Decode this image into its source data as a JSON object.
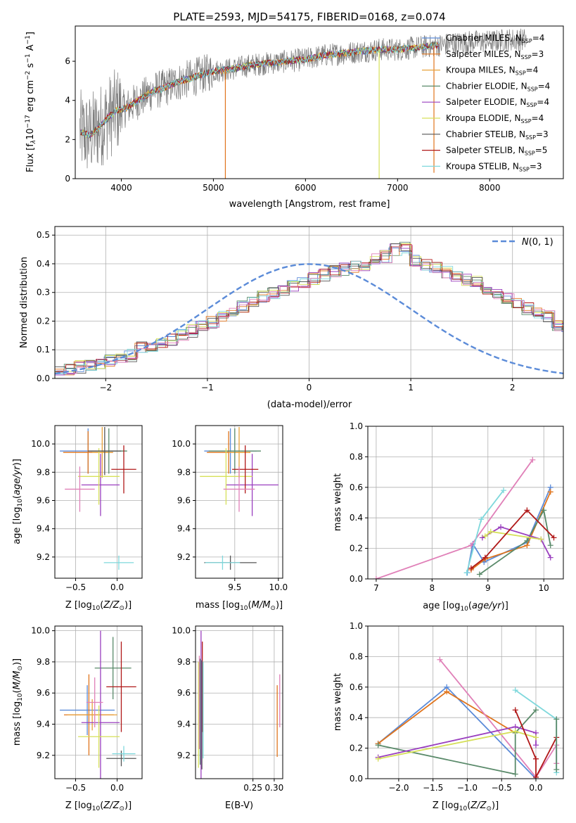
{
  "figure_title": "PLATE=2593, MJD=54175, FIBERID=0168, z=0.074",
  "colors": {
    "Chabrier MILES": "#5b8bd8",
    "Salpeter MILES": "#e0741c",
    "Kroupa MILES": "#e8a23a",
    "Chabrier ELODIE": "#5a8a6a",
    "Salpeter ELODIE": "#9a3fbf",
    "Kroupa ELODIE": "#d6e05a",
    "Chabrier STELIB": "#555555",
    "Salpeter STELIB": "#b01818",
    "Kroupa STELIB": "#7fd8dc",
    "pink": "#e080b8",
    "data": "#7a7a7a",
    "normal": "#5b8bd8"
  },
  "chart_data": [
    {
      "id": "spectrum",
      "type": "line",
      "xlabel": "wavelength [Angstrom, rest frame]",
      "ylabel": "Flux [f",
      "xlim": [
        3500,
        8800
      ],
      "ylim": [
        0,
        7.8
      ],
      "xticks": [
        4000,
        5000,
        6000,
        7000,
        8000
      ],
      "yticks": [
        0,
        2,
        4,
        6
      ],
      "legend_position": "upper right",
      "legend": [
        {
          "model": "Chabrier MILES",
          "label": "Chabrier MILES, N",
          "n": "=4"
        },
        {
          "model": "Salpeter MILES",
          "label": "Salpeter MILES, N",
          "n": "=3"
        },
        {
          "model": "Kroupa MILES",
          "label": "Kroupa MILES, N",
          "n": "=4"
        },
        {
          "model": "Chabrier ELODIE",
          "label": "Chabrier ELODIE, N",
          "n": "=4"
        },
        {
          "model": "Salpeter ELODIE",
          "label": "Salpeter ELODIE, N",
          "n": "=4"
        },
        {
          "model": "Kroupa ELODIE",
          "label": "Kroupa ELODIE, N",
          "n": "=4"
        },
        {
          "model": "Chabrier STELIB",
          "label": "Chabrier STELIB, N",
          "n": "=3"
        },
        {
          "model": "Salpeter STELIB",
          "label": "Salpeter STELIB, N",
          "n": "=5"
        },
        {
          "model": "Kroupa STELIB",
          "label": "Kroupa STELIB, N",
          "n": "=3"
        }
      ],
      "continuum": {
        "x": [
          3550,
          3650,
          3750,
          3850,
          3950,
          4050,
          4150,
          4250,
          4350,
          4450,
          4600,
          4800,
          5000,
          5200,
          5400,
          5600,
          5800,
          6000,
          6200,
          6400,
          6600,
          6800,
          7000,
          7200,
          7400,
          7600,
          7800,
          8000,
          8200,
          8400
        ],
        "y": [
          2.4,
          2.2,
          2.6,
          3.1,
          3.5,
          3.6,
          3.9,
          4.2,
          4.5,
          4.6,
          4.9,
          5.2,
          5.5,
          5.6,
          5.8,
          5.9,
          6.0,
          6.1,
          6.3,
          6.4,
          6.5,
          6.6,
          6.6,
          6.7,
          6.8,
          6.9,
          7.0,
          7.0,
          7.1,
          7.1
        ]
      },
      "dips": [
        {
          "x": 5130,
          "depth": 0,
          "model": "Salpeter MILES"
        },
        {
          "x": 6800,
          "depth": 0,
          "model": "Kroupa ELODIE"
        },
        {
          "x": 7395,
          "depth": 0.3,
          "model": "Salpeter MILES"
        }
      ]
    },
    {
      "id": "residual-histogram",
      "type": "histogram",
      "xlabel": "(data-model)/error",
      "ylabel": "Normed distribution",
      "xlim": [
        -2.5,
        2.5
      ],
      "ylim": [
        0,
        0.53
      ],
      "xticks": [
        -2,
        -1,
        0,
        1,
        2
      ],
      "yticks": [
        0.0,
        0.1,
        0.2,
        0.3,
        0.4,
        0.5
      ],
      "bin_width": 0.1,
      "bin_start": -2.5,
      "base_values": [
        0.03,
        0.033,
        0.04,
        0.048,
        0.056,
        0.062,
        0.068,
        0.08,
        0.108,
        0.112,
        0.122,
        0.134,
        0.15,
        0.166,
        0.18,
        0.196,
        0.22,
        0.234,
        0.248,
        0.262,
        0.284,
        0.298,
        0.31,
        0.324,
        0.338,
        0.35,
        0.362,
        0.372,
        0.38,
        0.388,
        0.392,
        0.418,
        0.425,
        0.448,
        0.46,
        0.412,
        0.396,
        0.388,
        0.372,
        0.36,
        0.346,
        0.334,
        0.31,
        0.296,
        0.276,
        0.262,
        0.244,
        0.232,
        0.216,
        0.184,
        0.176,
        0.16,
        0.14,
        0.128,
        0.108,
        0.104,
        0.09,
        0.08,
        0.07,
        0.062,
        0.052,
        0.046,
        0.04,
        0.034,
        0.028
      ],
      "normal": {
        "label": "N(0,1)",
        "mu": 0,
        "sigma": 1
      }
    },
    {
      "id": "age-vs-Z",
      "type": "errorbar",
      "xlabel": "Z [log",
      "ylabel": "age  [log",
      "xlim": [
        -0.75,
        0.3
      ],
      "ylim": [
        9.05,
        10.13
      ],
      "xticks": [
        -0.5,
        0.0
      ],
      "yticks": [
        9.2,
        9.4,
        9.6,
        9.8,
        10.0
      ],
      "points": [
        {
          "model": "Chabrier MILES",
          "x": -0.35,
          "y": 9.95,
          "xerr": 0.34,
          "yerr": 0.16
        },
        {
          "model": "Salpeter MILES",
          "x": -0.35,
          "y": 9.94,
          "xerr": 0.3,
          "yerr": 0.15
        },
        {
          "model": "Kroupa MILES",
          "x": -0.18,
          "y": 9.94,
          "xerr": 0.12,
          "yerr": 0.18
        },
        {
          "model": "Chabrier ELODIE",
          "x": -0.1,
          "y": 9.95,
          "xerr": 0.22,
          "yerr": 0.16
        },
        {
          "model": "Salpeter ELODIE",
          "x": -0.2,
          "y": 9.71,
          "xerr": 0.23,
          "yerr": 0.22
        },
        {
          "model": "Kroupa ELODIE",
          "x": -0.22,
          "y": 9.77,
          "xerr": 0.25,
          "yerr": 0.2
        },
        {
          "model": "Chabrier STELIB",
          "x": -0.15,
          "y": 9.95,
          "xerr": 0.2,
          "yerr": 0.17
        },
        {
          "model": "Salpeter STELIB",
          "x": 0.08,
          "y": 9.82,
          "xerr": 0.15,
          "yerr": 0.17
        },
        {
          "model": "Kroupa STELIB",
          "x": 0.02,
          "y": 9.16,
          "xerr": 0.18,
          "yerr": 0.05
        },
        {
          "model": "pink",
          "x": -0.45,
          "y": 9.68,
          "xerr": 0.18,
          "yerr": 0.16
        }
      ]
    },
    {
      "id": "age-vs-mass",
      "type": "errorbar",
      "xlabel": "mass [log",
      "ylabel": "",
      "xlim": [
        9.05,
        10.05
      ],
      "ylim": [
        9.05,
        10.13
      ],
      "xticks": [
        9.5,
        10.0
      ],
      "yticks": [
        9.2,
        9.4,
        9.6,
        9.8,
        10.0
      ],
      "points": [
        {
          "model": "Chabrier MILES",
          "x": 9.45,
          "y": 9.95,
          "xerr": 0.3,
          "yerr": 0.16
        },
        {
          "model": "Salpeter MILES",
          "x": 9.43,
          "y": 9.94,
          "xerr": 0.25,
          "yerr": 0.15
        },
        {
          "model": "Kroupa MILES",
          "x": 9.55,
          "y": 9.94,
          "xerr": 0.12,
          "yerr": 0.18
        },
        {
          "model": "Chabrier ELODIE",
          "x": 9.5,
          "y": 9.95,
          "xerr": 0.3,
          "yerr": 0.16
        },
        {
          "model": "Salpeter ELODIE",
          "x": 9.7,
          "y": 9.71,
          "xerr": 0.3,
          "yerr": 0.22
        },
        {
          "model": "Kroupa ELODIE",
          "x": 9.4,
          "y": 9.77,
          "xerr": 0.3,
          "yerr": 0.2
        },
        {
          "model": "Chabrier STELIB",
          "x": 9.45,
          "y": 9.16,
          "xerr": 0.3,
          "yerr": 0.05
        },
        {
          "model": "Salpeter STELIB",
          "x": 9.62,
          "y": 9.82,
          "xerr": 0.15,
          "yerr": 0.17
        },
        {
          "model": "Kroupa STELIB",
          "x": 9.36,
          "y": 9.16,
          "xerr": 0.2,
          "yerr": 0.05
        },
        {
          "model": "pink",
          "x": 9.55,
          "y": 9.68,
          "xerr": 0.18,
          "yerr": 0.16
        }
      ]
    },
    {
      "id": "massweight-vs-age",
      "type": "line",
      "xlabel": "age  [log",
      "ylabel": "mass weight",
      "xlim": [
        6.85,
        10.35
      ],
      "ylim": [
        0,
        1.0
      ],
      "xticks": [
        7,
        8,
        9,
        10
      ],
      "yticks": [
        0.0,
        0.2,
        0.4,
        0.6,
        0.8,
        1.0
      ],
      "series": [
        {
          "model": "Chabrier MILES",
          "x": [
            8.63,
            8.73,
            8.93,
            9.7,
            10.12
          ],
          "y": [
            0.04,
            0.23,
            0.11,
            0.24,
            0.6
          ]
        },
        {
          "model": "Salpeter MILES",
          "x": [
            8.7,
            8.95,
            9.7,
            10.12
          ],
          "y": [
            0.06,
            0.13,
            0.22,
            0.57
          ]
        },
        {
          "model": "pink",
          "x": [
            7.0,
            8.7,
            9.8
          ],
          "y": [
            0.0,
            0.22,
            0.78
          ]
        },
        {
          "model": "Chabrier ELODIE",
          "x": [
            8.85,
            9.7,
            10.0,
            10.12
          ],
          "y": [
            0.03,
            0.25,
            0.45,
            0.22
          ]
        },
        {
          "model": "Salpeter ELODIE",
          "x": [
            8.9,
            9.23,
            9.95,
            10.12
          ],
          "y": [
            0.27,
            0.34,
            0.26,
            0.14
          ]
        },
        {
          "model": "Kroupa ELODIE",
          "x": [
            8.95,
            9.05,
            9.95
          ],
          "y": [
            0.28,
            0.31,
            0.26
          ]
        },
        {
          "model": "Salpeter STELIB",
          "x": [
            8.7,
            8.95,
            9.7,
            10.18
          ],
          "y": [
            0.07,
            0.14,
            0.45,
            0.27
          ]
        },
        {
          "model": "Kroupa STELIB",
          "x": [
            8.62,
            8.88,
            9.28
          ],
          "y": [
            0.04,
            0.39,
            0.58
          ]
        }
      ]
    },
    {
      "id": "mass-vs-Z",
      "type": "errorbar",
      "xlabel": "Z [log",
      "ylabel": "mass [log",
      "xlim": [
        -0.75,
        0.3
      ],
      "ylim": [
        9.05,
        10.03
      ],
      "xticks": [
        -0.5,
        0.0
      ],
      "yticks": [
        9.2,
        9.4,
        9.6,
        9.8,
        10.0
      ],
      "points": [
        {
          "model": "Chabrier MILES",
          "x": -0.36,
          "y": 9.49,
          "xerr": 0.33,
          "yerr": 0.16
        },
        {
          "model": "Salpeter MILES",
          "x": -0.34,
          "y": 9.46,
          "xerr": 0.3,
          "yerr": 0.26
        },
        {
          "model": "Kroupa MILES",
          "x": -0.3,
          "y": 9.46,
          "xerr": 0.3,
          "yerr": 0.1
        },
        {
          "model": "Chabrier ELODIE",
          "x": -0.05,
          "y": 9.76,
          "xerr": 0.22,
          "yerr": 0.2
        },
        {
          "model": "Salpeter ELODIE",
          "x": -0.2,
          "y": 9.41,
          "xerr": 0.23,
          "yerr": 0.59
        },
        {
          "model": "Kroupa ELODIE",
          "x": -0.22,
          "y": 9.32,
          "xerr": 0.25,
          "yerr": 0.2
        },
        {
          "model": "Chabrier STELIB",
          "x": 0.05,
          "y": 9.18,
          "xerr": 0.18,
          "yerr": 0.05
        },
        {
          "model": "Salpeter STELIB",
          "x": 0.05,
          "y": 9.64,
          "xerr": 0.18,
          "yerr": 0.29
        },
        {
          "model": "Kroupa STELIB",
          "x": 0.08,
          "y": 9.21,
          "xerr": 0.14,
          "yerr": 0.05
        },
        {
          "model": "pink",
          "x": -0.27,
          "y": 9.54,
          "xerr": 0.1,
          "yerr": 0.16
        }
      ]
    },
    {
      "id": "mass-vs-ebv",
      "type": "errorbar",
      "xlabel": "E(B-V)",
      "ylabel": "",
      "xlim": [
        0.115,
        0.32
      ],
      "ylim": [
        9.05,
        10.03
      ],
      "xticks": [
        0.25,
        0.3
      ],
      "yticks": [
        9.2,
        9.4,
        9.6,
        9.8,
        10.0
      ],
      "points": [
        {
          "model": "Salpeter ELODIE",
          "x": 0.128,
          "y": 9.41,
          "xerr": 0.0,
          "yerr": 0.59
        },
        {
          "model": "Salpeter STELIB",
          "x": 0.131,
          "y": 9.64,
          "xerr": 0.0,
          "yerr": 0.29
        },
        {
          "model": "Chabrier ELODIE",
          "x": 0.126,
          "y": 9.48,
          "xerr": 0.0,
          "yerr": 0.34
        },
        {
          "model": "Kroupa ELODIE",
          "x": 0.122,
          "y": 9.46,
          "xerr": 0.0,
          "yerr": 0.34
        },
        {
          "model": "Kroupa STELIB",
          "x": 0.133,
          "y": 9.49,
          "xerr": 0.0,
          "yerr": 0.31
        },
        {
          "model": "pink",
          "x": 0.124,
          "y": 9.54,
          "xerr": 0.0,
          "yerr": 0.3
        },
        {
          "model": "Chabrier STELIB",
          "x": 0.13,
          "y": 9.46,
          "xerr": 0.0,
          "yerr": 0.35
        },
        {
          "model": "Salpeter MILES",
          "x": 0.307,
          "y": 9.42,
          "xerr": 0.0,
          "yerr": 0.23
        },
        {
          "model": "pink",
          "x": 0.313,
          "y": 9.55,
          "xerr": 0.0,
          "yerr": 0.17
        }
      ]
    },
    {
      "id": "massweight-vs-Z",
      "type": "line",
      "xlabel": "Z [log",
      "ylabel": "mass weight",
      "xlim": [
        -2.45,
        0.4
      ],
      "ylim": [
        0,
        1.0
      ],
      "xticks": [
        -2.0,
        -1.5,
        -1.0,
        -0.5,
        0.0
      ],
      "yticks": [
        0.0,
        0.2,
        0.4,
        0.6,
        0.8,
        1.0
      ],
      "series": [
        {
          "model": "Chabrier MILES",
          "x": [
            -2.3,
            -1.3,
            0.0
          ],
          "y": [
            0.23,
            0.6,
            0.0
          ]
        },
        {
          "model": "Salpeter MILES",
          "x": [
            -2.3,
            -1.3,
            -0.3
          ],
          "y": [
            0.23,
            0.57,
            0.3
          ]
        },
        {
          "model": "pink",
          "x": [
            -1.4,
            0.0,
            0.3,
            0.3
          ],
          "y": [
            0.78,
            0.01,
            0.22,
            0.1
          ]
        },
        {
          "model": "Chabrier ELODIE",
          "x": [
            -2.3,
            -0.3,
            -0.3,
            0.0
          ],
          "y": [
            0.22,
            0.03,
            0.3,
            0.45
          ]
        },
        {
          "model": "Salpeter ELODIE",
          "x": [
            -2.3,
            -0.3,
            0.0,
            0.0
          ],
          "y": [
            0.14,
            0.34,
            0.3,
            0.22
          ]
        },
        {
          "model": "Kroupa ELODIE",
          "x": [
            -2.3,
            -0.3,
            0.0
          ],
          "y": [
            0.13,
            0.31,
            0.27
          ]
        },
        {
          "model": "Salpeter STELIB",
          "x": [
            -0.3,
            0.0,
            0.0,
            0.3
          ],
          "y": [
            0.45,
            0.13,
            0.01,
            0.27
          ]
        },
        {
          "model": "Kroupa STELIB",
          "x": [
            -0.3,
            0.3,
            0.3
          ],
          "y": [
            0.58,
            0.39,
            0.04
          ]
        },
        {
          "model": "Chabrier ELODIE",
          "x": [
            0.3,
            0.3
          ],
          "y": [
            0.39,
            0.06
          ]
        }
      ]
    }
  ]
}
